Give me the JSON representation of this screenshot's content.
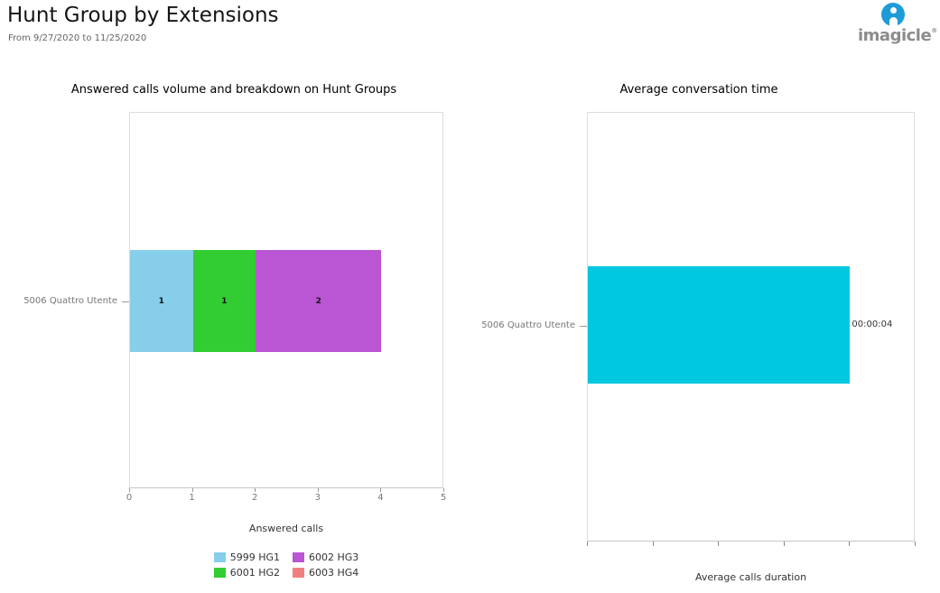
{
  "header": {
    "title": "Hunt Group by Extensions",
    "subtitle": "From 9/27/2020 to 11/25/2020",
    "logo_text": "imagicle",
    "logo_registered": "®",
    "logo_color": "#1E9CD8",
    "logo_text_color": "#8C8C8C"
  },
  "chart_data": [
    {
      "type": "bar",
      "orientation": "horizontal",
      "stacked": true,
      "title": "Answered calls volume and breakdown on Hunt Groups",
      "categories": [
        "5006 Quattro Utente"
      ],
      "series": [
        {
          "name": "5999 HG1",
          "color": "#87CEEB",
          "values": [
            1
          ]
        },
        {
          "name": "6001 HG2",
          "color": "#32CD32",
          "values": [
            1
          ]
        },
        {
          "name": "6002 HG3",
          "color": "#BA55D3",
          "values": [
            2
          ]
        },
        {
          "name": "6003 HG4",
          "color": "#F08080",
          "values": [
            0
          ]
        }
      ],
      "xlabel": "Answered calls",
      "xlim": [
        0,
        5
      ],
      "xticks": [
        0,
        1,
        2,
        3,
        4,
        5
      ],
      "grid": false,
      "legend_position": "bottom"
    },
    {
      "type": "bar",
      "orientation": "horizontal",
      "stacked": false,
      "title": "Average conversation time",
      "categories": [
        "5006 Quattro Utente"
      ],
      "series": [
        {
          "name": "Average calls duration",
          "color": "#00C8E0",
          "values": [
            4
          ],
          "value_labels": [
            "00:00:04"
          ]
        }
      ],
      "xlabel": "Average calls duration",
      "xlim": [
        0,
        5
      ],
      "xticks_count": 6,
      "xtick_labels_visible": false,
      "grid": false,
      "legend_position": "none"
    }
  ]
}
